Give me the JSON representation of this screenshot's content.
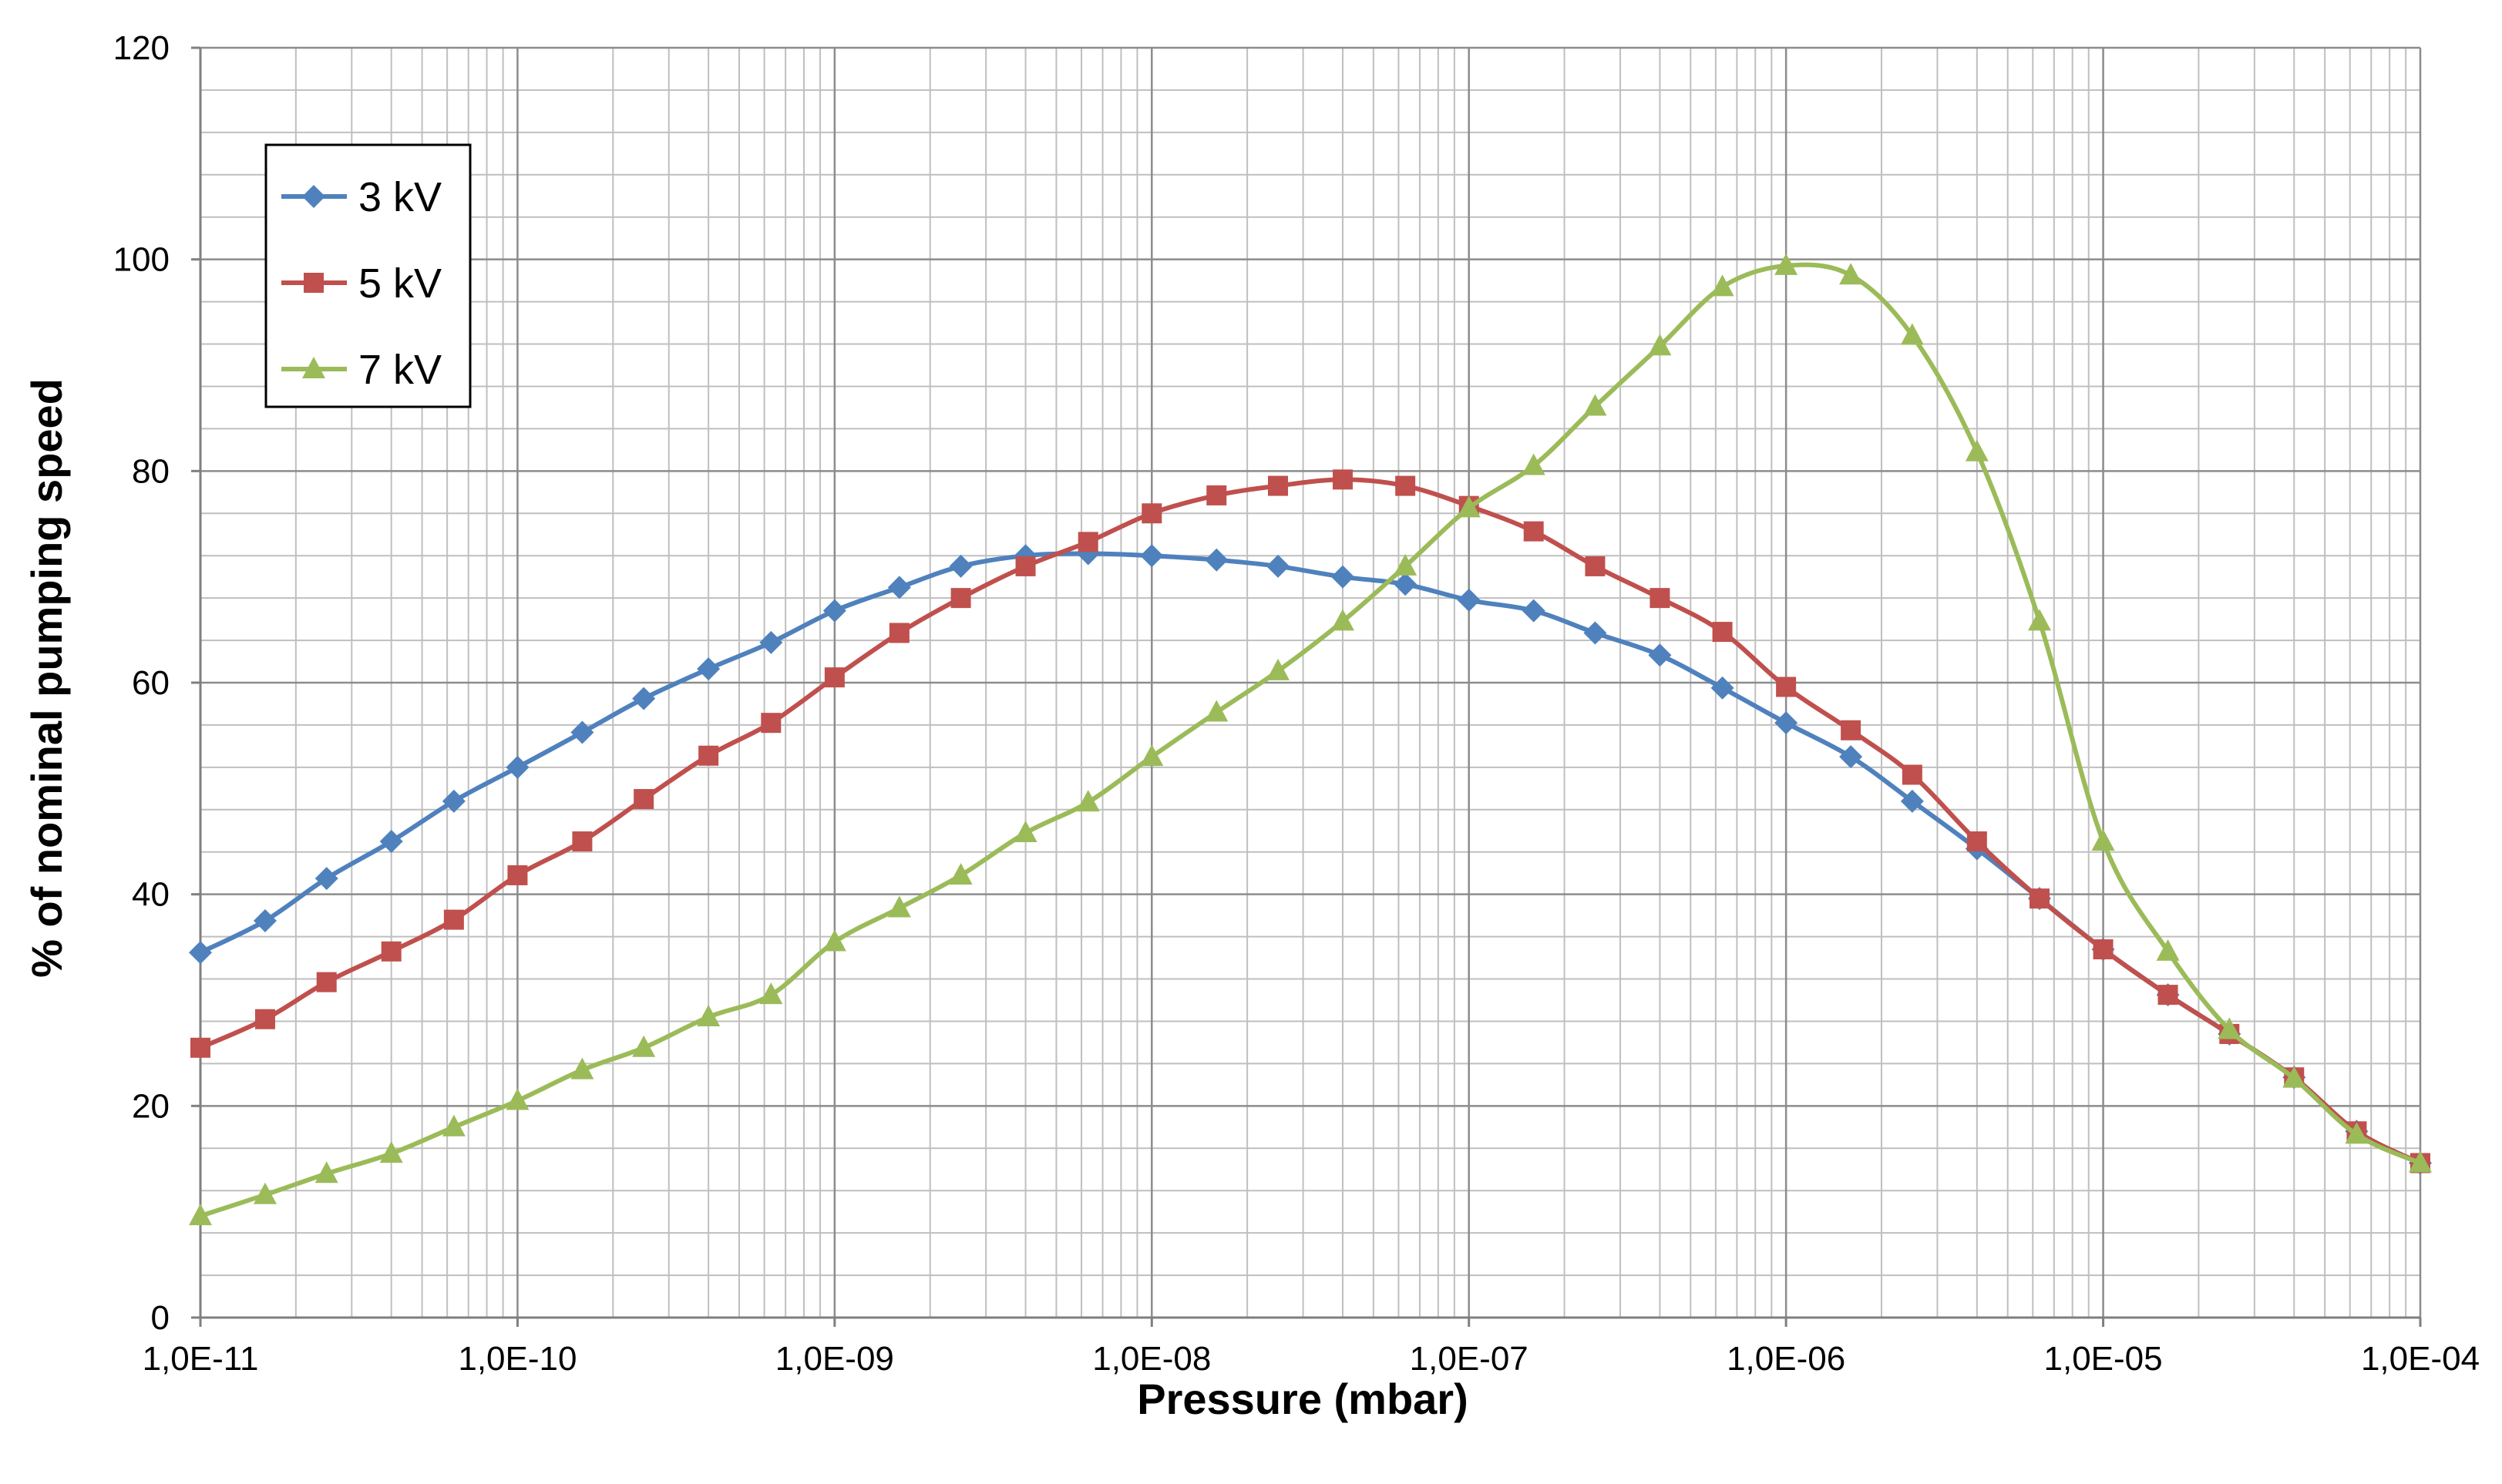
{
  "chart_data": {
    "type": "line",
    "title": "",
    "xlabel": "Pressure (mbar)",
    "ylabel": "% of nominal pumping speed",
    "x_scale": "log",
    "xlim": [
      1e-11,
      0.0001
    ],
    "ylim": [
      0,
      120
    ],
    "grid": true,
    "legend_position": "top-left",
    "x_tick_labels": [
      "1,0E-11",
      "1,0E-10",
      "1,0E-09",
      "1,0E-08",
      "1,0E-07",
      "1,0E-06",
      "1,0E-05",
      "1,0E-04"
    ],
    "y_tick_labels": [
      "0",
      "20",
      "40",
      "60",
      "80",
      "100",
      "120"
    ],
    "x": [
      1e-11,
      1.6e-11,
      2.5e-11,
      4e-11,
      6.3e-11,
      1e-10,
      1.6e-10,
      2.5e-10,
      4e-10,
      6.3e-10,
      1e-09,
      1.6e-09,
      2.5e-09,
      4e-09,
      6.3e-09,
      1e-08,
      1.6e-08,
      2.5e-08,
      4e-08,
      6.3e-08,
      1e-07,
      1.6e-07,
      2.5e-07,
      4e-07,
      6.3e-07,
      1e-06,
      1.6e-06,
      2.5e-06,
      4e-06,
      6.3e-06,
      1e-05,
      1.6e-05,
      2.5e-05,
      4e-05,
      6.3e-05,
      0.0001
    ],
    "series": [
      {
        "name": "3 kV",
        "color": "#4f81bd",
        "marker": "diamond",
        "values": [
          34.5,
          37.5,
          41.5,
          45,
          48.8,
          52,
          55.3,
          58.5,
          61.3,
          63.8,
          66.8,
          69,
          71,
          72,
          72.2,
          72,
          71.6,
          71,
          70,
          69.3,
          67.8,
          66.8,
          64.7,
          62.6,
          59.5,
          56.2,
          53,
          48.8,
          44.3,
          39.6,
          34.8,
          30.5,
          26.8,
          22.7,
          17.6,
          14.6
        ]
      },
      {
        "name": "5 kV",
        "color": "#c0504d",
        "marker": "square",
        "values": [
          25.5,
          28.2,
          31.7,
          34.6,
          37.6,
          41.8,
          45,
          49,
          53.1,
          56.2,
          60.5,
          64.7,
          68,
          71,
          73.3,
          76,
          77.7,
          78.6,
          79.2,
          78.6,
          76.7,
          74.3,
          71,
          68,
          64.8,
          59.6,
          55.5,
          51.3,
          45,
          39.6,
          34.8,
          30.5,
          26.8,
          22.7,
          17.6,
          14.6
        ]
      },
      {
        "name": "7 kV",
        "color": "#9bbb59",
        "marker": "triangle",
        "values": [
          9.6,
          11.6,
          13.6,
          15.5,
          18,
          20.5,
          23.4,
          25.5,
          28.4,
          30.5,
          35.5,
          38.7,
          41.8,
          45.8,
          48.7,
          53,
          57.2,
          61.1,
          65.8,
          71,
          76.5,
          80.5,
          86.1,
          91.8,
          97.4,
          99.4,
          98.5,
          92.8,
          81.8,
          65.8,
          45,
          34.6,
          27.2,
          22.6,
          17.3,
          14.6
        ]
      }
    ]
  }
}
